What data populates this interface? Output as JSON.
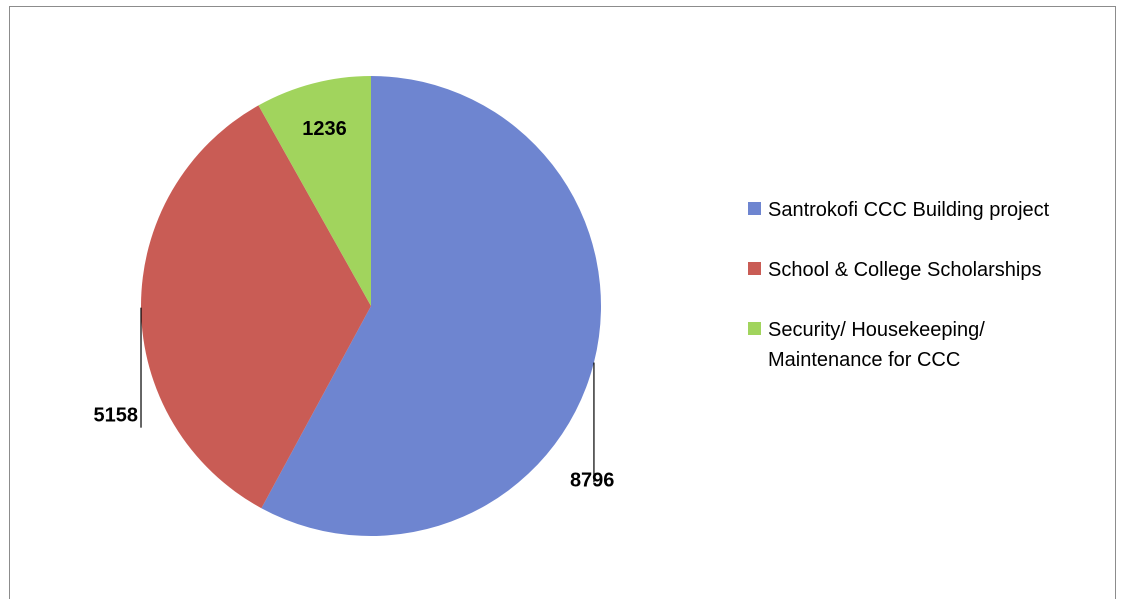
{
  "chart_data": {
    "type": "pie",
    "categories": [
      "Santrokofi CCC Building project",
      "School & College Scholarships",
      "Security/ Housekeeping/ Maintenance  for CCC"
    ],
    "values": [
      8796,
      5158,
      1236
    ],
    "colors": [
      "#6e85d0",
      "#c95c55",
      "#a1d45d"
    ],
    "start_angle_deg": 0,
    "direction": "clockwise",
    "data_labels": [
      "8796",
      "5158",
      "1236"
    ],
    "legend_position": "right",
    "title": ""
  },
  "legend": {
    "items": [
      {
        "label": "Santrokofi CCC Building project",
        "color": "#6e85d0"
      },
      {
        "label": "School & College Scholarships",
        "color": "#c95c55"
      },
      {
        "label": "Security/ Housekeeping/ Maintenance  for CCC",
        "color": "#a1d45d"
      }
    ]
  }
}
